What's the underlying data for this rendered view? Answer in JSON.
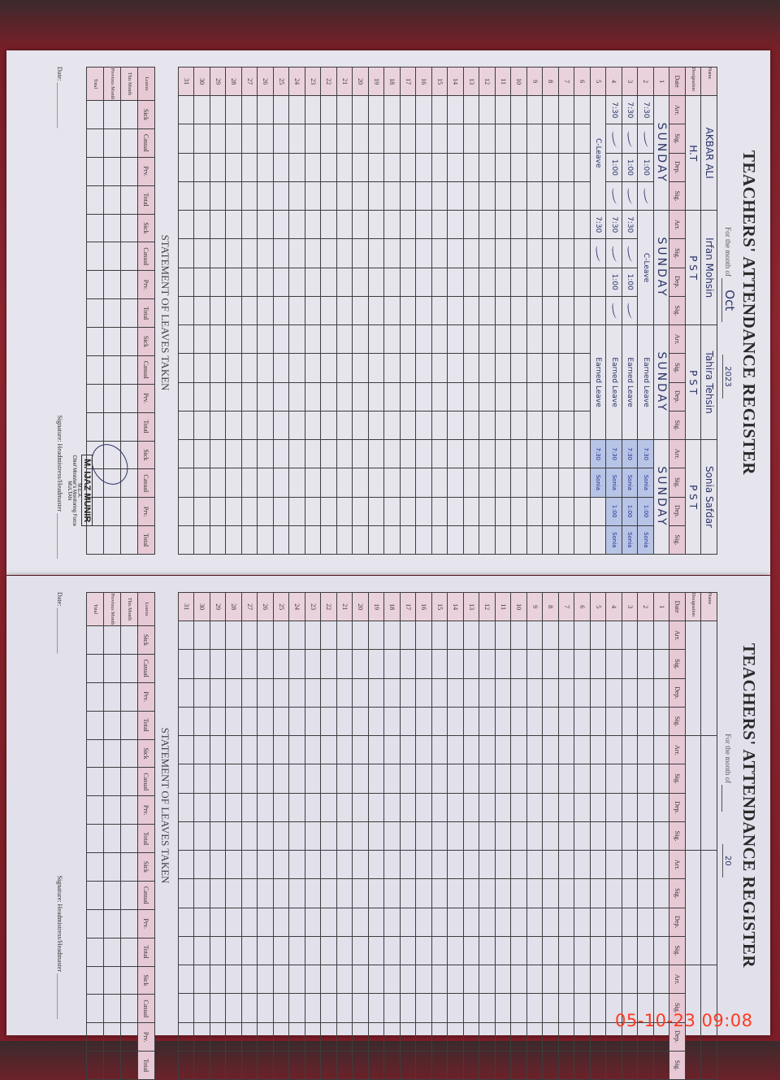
{
  "left_page": {
    "title": "TEACHERS' ATTENDANCE REGISTER",
    "month_label": "For the month of",
    "month_value": "Oct",
    "year_value": "2023",
    "name_label": "Name",
    "designation_label": "Designation",
    "date_header": "Date",
    "col_headers": [
      "Arr.",
      "Sig.",
      "Dep.",
      "Sig."
    ],
    "teachers": [
      {
        "name": "AKBAR ALI",
        "designation": "H.T"
      },
      {
        "name": "Irfan Mohsin",
        "designation": "P S T"
      },
      {
        "name": "Tahira Tehsin",
        "designation": "P S T"
      },
      {
        "name": "Sonia Safdar",
        "designation": "P S T"
      }
    ],
    "days": [
      {
        "date": "1",
        "entries": [
          {
            "span": "SUNDAY"
          },
          {
            "span": "SUNDAY"
          },
          {
            "span": "SUNDAY"
          },
          {
            "span": "SUNDAY"
          }
        ]
      },
      {
        "date": "2",
        "entries": [
          {
            "cells": [
              "7:30",
              "~",
              "1:00",
              "~"
            ]
          },
          {
            "span": "C-Leave"
          },
          {
            "span": "Earned Leave"
          },
          {
            "cells": [
              "7:30",
              "Sonia",
              "1:00",
              "Sonia"
            ],
            "stamp": true
          }
        ]
      },
      {
        "date": "3",
        "entries": [
          {
            "cells": [
              "7:30",
              "~",
              "1:00",
              "~"
            ]
          },
          {
            "cells": [
              "7:30",
              "~",
              "1:00",
              "~"
            ]
          },
          {
            "span": "Earned Leave"
          },
          {
            "cells": [
              "7:30",
              "Sonia",
              "1:00",
              "Sonia"
            ],
            "stamp": true
          }
        ]
      },
      {
        "date": "4",
        "entries": [
          {
            "cells": [
              "7:30",
              "~",
              "1:00",
              "~"
            ]
          },
          {
            "cells": [
              "7:30",
              "~",
              "1:00",
              "~"
            ]
          },
          {
            "span": "Earned Leave"
          },
          {
            "cells": [
              "7:30",
              "Sonia",
              "1:00",
              "Sonia"
            ],
            "stamp": true
          }
        ]
      },
      {
        "date": "5",
        "entries": [
          {
            "span": "C-Leave"
          },
          {
            "cells": [
              "7:30",
              "~",
              "",
              ""
            ]
          },
          {
            "span": "Earned Leave"
          },
          {
            "cells": [
              "7:30",
              "Sonia",
              "",
              ""
            ],
            "stamp": true
          }
        ]
      }
    ],
    "day_count": 31,
    "leaves_title": "STATEMENT OF LEAVES TAKEN",
    "leaves_headers": [
      "Sick",
      "Casual",
      "Prv.",
      "Total"
    ],
    "leaves_row_label": "Leaves",
    "leaves_rows": [
      "This Month",
      "Previous Month",
      "Total"
    ],
    "date_footer": "Date:",
    "signature_label": "Signature: Headmistress/Headmaster",
    "stamp": {
      "name": "M. IJAZ MUNIR",
      "title": "M.E.A.",
      "org": "Chief Minister's Monitoring Force",
      "city": "MULTAN"
    }
  },
  "right_page": {
    "title": "TEACHERS' ATTENDANCE REGISTER",
    "month_label": "For the month of",
    "month_value": "",
    "year_value": "20",
    "name_label": "Name",
    "designation_label": "Designation",
    "date_header": "Date",
    "col_headers": [
      "Arr.",
      "Sig.",
      "Dep.",
      "Sig."
    ],
    "teachers": [
      {
        "name": "",
        "designation": ""
      },
      {
        "name": "",
        "designation": ""
      },
      {
        "name": "",
        "designation": ""
      },
      {
        "name": "",
        "designation": ""
      }
    ],
    "days": [],
    "day_count": 31,
    "leaves_title": "STATEMENT OF LEAVES TAKEN",
    "leaves_headers": [
      "Sick",
      "Casual",
      "Prv.",
      "Total"
    ],
    "leaves_row_label": "Leaves",
    "leaves_rows": [
      "This Month",
      "Previous Month",
      "Total"
    ],
    "date_footer": "Date:",
    "signature_label": "Signature: Headmistress/Headmaster"
  },
  "timestamp": "05-10-23  09:08",
  "colors": {
    "background": "#8e2530",
    "paper": "#e6e4ec",
    "header_band": "#e7c9d6",
    "ink": "#2a3466",
    "timestamp": "#ff3a20"
  }
}
